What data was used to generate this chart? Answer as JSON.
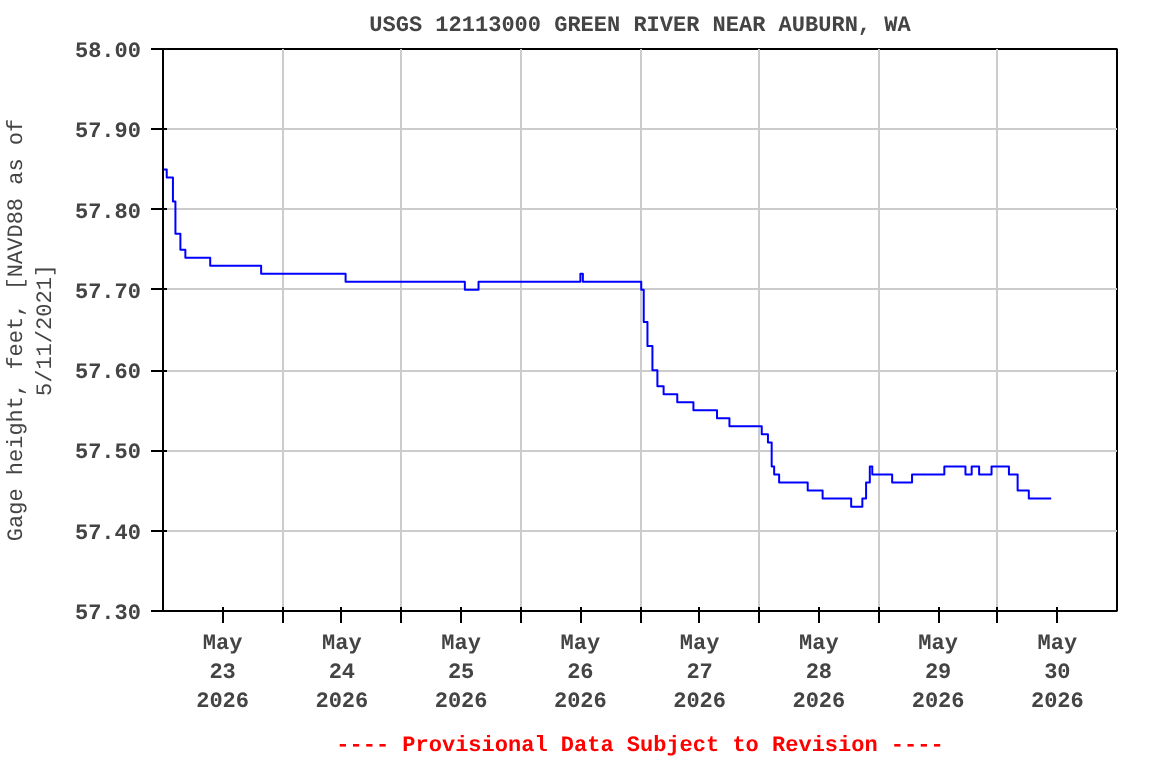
{
  "chart_data": {
    "type": "step",
    "title": "USGS 12113000 GREEN RIVER NEAR AUBURN, WA",
    "ylabel": "Gage height, feet, [NAVD88 as of\n5/11/2021]",
    "annotations": [
      "---- Provisional Data Subject to Revision ----"
    ],
    "series": [
      {
        "color": "#0000ff",
        "x": [
          "2026-05-23T00:00",
          "2026-05-23T00:45",
          "2026-05-23T02:00",
          "2026-05-23T02:30",
          "2026-05-23T03:30",
          "2026-05-23T04:30",
          "2026-05-23T09:30",
          "2026-05-23T19:45",
          "2026-05-24T12:45",
          "2026-05-25T12:45",
          "2026-05-25T15:30",
          "2026-05-26T12:00",
          "2026-05-26T12:30",
          "2026-05-27T00:15",
          "2026-05-27T00:45",
          "2026-05-27T01:30",
          "2026-05-27T02:30",
          "2026-05-27T03:30",
          "2026-05-27T04:45",
          "2026-05-27T07:30",
          "2026-05-27T10:45",
          "2026-05-27T15:30",
          "2026-05-27T18:00",
          "2026-05-28T00:30",
          "2026-05-28T01:45",
          "2026-05-28T02:30",
          "2026-05-28T03:00",
          "2026-05-28T04:00",
          "2026-05-28T09:45",
          "2026-05-28T12:45",
          "2026-05-28T18:30",
          "2026-05-28T20:45",
          "2026-05-28T21:30",
          "2026-05-28T22:15",
          "2026-05-28T22:45",
          "2026-05-29T02:45",
          "2026-05-29T06:45",
          "2026-05-29T13:15",
          "2026-05-29T17:30",
          "2026-05-29T18:45",
          "2026-05-29T20:15",
          "2026-05-29T22:45",
          "2026-05-30T02:15",
          "2026-05-30T04:00",
          "2026-05-30T06:15",
          "2026-05-30T10:45"
        ],
        "values": [
          57.85,
          57.84,
          57.81,
          57.77,
          57.75,
          57.74,
          57.73,
          57.72,
          57.71,
          57.7,
          57.71,
          57.72,
          57.71,
          57.7,
          57.66,
          57.63,
          57.6,
          57.58,
          57.57,
          57.56,
          57.55,
          57.54,
          57.53,
          57.52,
          57.51,
          57.48,
          57.47,
          57.46,
          57.45,
          57.44,
          57.43,
          57.44,
          57.46,
          57.48,
          57.47,
          57.46,
          57.47,
          57.48,
          57.47,
          57.48,
          57.47,
          57.48,
          57.47,
          57.45,
          57.44,
          57.44
        ]
      }
    ],
    "xlim": [
      "2026-05-23T00:00",
      "2026-05-31T00:00"
    ],
    "xticks": [
      {
        "value": "2026-05-23T12:00",
        "label": "May\n23\n2026"
      },
      {
        "value": "2026-05-24T00:00",
        "label": null
      },
      {
        "value": "2026-05-24T12:00",
        "label": "May\n24\n2026"
      },
      {
        "value": "2026-05-25T00:00",
        "label": null
      },
      {
        "value": "2026-05-25T12:00",
        "label": "May\n25\n2026"
      },
      {
        "value": "2026-05-26T00:00",
        "label": null
      },
      {
        "value": "2026-05-26T12:00",
        "label": "May\n26\n2026"
      },
      {
        "value": "2026-05-27T00:00",
        "label": null
      },
      {
        "value": "2026-05-27T12:00",
        "label": "May\n27\n2026"
      },
      {
        "value": "2026-05-28T00:00",
        "label": null
      },
      {
        "value": "2026-05-28T12:00",
        "label": "May\n28\n2026"
      },
      {
        "value": "2026-05-29T00:00",
        "label": null
      },
      {
        "value": "2026-05-29T12:00",
        "label": "May\n29\n2026"
      },
      {
        "value": "2026-05-30T00:00",
        "label": null
      },
      {
        "value": "2026-05-30T12:00",
        "label": "May\n30\n2026"
      }
    ],
    "ylim": [
      57.3,
      58.0
    ],
    "yticks": [
      {
        "value": 57.3,
        "label": "57.30"
      },
      {
        "value": 57.4,
        "label": "57.40"
      },
      {
        "value": 57.5,
        "label": "57.50"
      },
      {
        "value": 57.6,
        "label": "57.60"
      },
      {
        "value": 57.7,
        "label": "57.70"
      },
      {
        "value": 57.8,
        "label": "57.80"
      },
      {
        "value": 57.9,
        "label": "57.90"
      },
      {
        "value": 58.0,
        "label": "58.00"
      }
    ],
    "grid": true,
    "line_style": "solid"
  }
}
